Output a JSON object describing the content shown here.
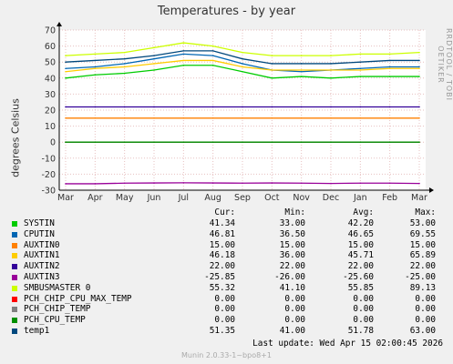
{
  "watermark": "RRDTOOL / TOBI OETIKER",
  "legend_headers": [
    "Cur:",
    "Min:",
    "Avg:",
    "Max:"
  ],
  "last_update": "Last update:  Wed Apr 15 02:00:45 2026",
  "footer": "Munin 2.0.33-1~bpo8+1",
  "chart_data": {
    "type": "line",
    "title": "Temperatures - by year",
    "xlabel": "",
    "ylabel": "degrees Celsius",
    "ylim": [
      -30,
      70
    ],
    "yticks": [
      -30,
      -20,
      -10,
      0,
      10,
      20,
      30,
      40,
      50,
      60,
      70
    ],
    "categories": [
      "Mar",
      "Apr",
      "May",
      "Jun",
      "Jul",
      "Aug",
      "Sep",
      "Oct",
      "Nov",
      "Dec",
      "Jan",
      "Feb",
      "Mar"
    ],
    "grid": true,
    "series": [
      {
        "name": "SYSTIN",
        "color": "#00cc00",
        "cur": "41.34",
        "min": "33.00",
        "avg": "42.20",
        "max": "53.00",
        "values": [
          40,
          42,
          43,
          45,
          48,
          48,
          44,
          40,
          41,
          40,
          41,
          41,
          41
        ]
      },
      {
        "name": "CPUTIN",
        "color": "#0066b3",
        "cur": "46.81",
        "min": "36.50",
        "avg": "46.65",
        "max": "69.55",
        "values": [
          46,
          47,
          49,
          52,
          55,
          54,
          49,
          45,
          44,
          45,
          46,
          47,
          47
        ]
      },
      {
        "name": "AUXTIN0",
        "color": "#ff8000",
        "cur": "15.00",
        "min": "15.00",
        "avg": "15.00",
        "max": "15.00",
        "values": [
          15,
          15,
          15,
          15,
          15,
          15,
          15,
          15,
          15,
          15,
          15,
          15,
          15
        ]
      },
      {
        "name": "AUXTIN1",
        "color": "#ffcc00",
        "cur": "46.18",
        "min": "36.00",
        "avg": "45.71",
        "max": "65.89",
        "values": [
          44,
          46,
          47,
          49,
          51,
          51,
          47,
          45,
          45,
          45,
          45,
          46,
          46
        ]
      },
      {
        "name": "AUXTIN2",
        "color": "#330099",
        "cur": "22.00",
        "min": "22.00",
        "avg": "22.00",
        "max": "22.00",
        "values": [
          22,
          22,
          22,
          22,
          22,
          22,
          22,
          22,
          22,
          22,
          22,
          22,
          22
        ]
      },
      {
        "name": "AUXTIN3",
        "color": "#990099",
        "cur": "-25.85",
        "min": "-26.00",
        "avg": "-25.60",
        "max": "-25.00",
        "values": [
          -26,
          -26,
          -25.6,
          -25.5,
          -25.4,
          -25.5,
          -25.6,
          -25.5,
          -25.6,
          -25.8,
          -25.6,
          -25.6,
          -25.8
        ]
      },
      {
        "name": "SMBUSMASTER 0",
        "color": "#ccff00",
        "cur": "55.32",
        "min": "41.10",
        "avg": "55.85",
        "max": "89.13",
        "values": [
          54,
          55,
          56,
          59,
          62,
          60,
          56,
          54,
          54,
          54,
          55,
          55,
          56
        ]
      },
      {
        "name": "PCH_CHIP_CPU_MAX_TEMP",
        "color": "#ff0000",
        "cur": "0.00",
        "min": "0.00",
        "avg": "0.00",
        "max": "0.00",
        "values": [
          0,
          0,
          0,
          0,
          0,
          0,
          0,
          0,
          0,
          0,
          0,
          0,
          0
        ]
      },
      {
        "name": "PCH_CHIP_TEMP",
        "color": "#808080",
        "cur": "0.00",
        "min": "0.00",
        "avg": "0.00",
        "max": "0.00",
        "values": [
          0,
          0,
          0,
          0,
          0,
          0,
          0,
          0,
          0,
          0,
          0,
          0,
          0
        ]
      },
      {
        "name": "PCH_CPU_TEMP",
        "color": "#008f00",
        "cur": "0.00",
        "min": "0.00",
        "avg": "0.00",
        "max": "0.00",
        "values": [
          0,
          0,
          0,
          0,
          0,
          0,
          0,
          0,
          0,
          0,
          0,
          0,
          0
        ]
      },
      {
        "name": "temp1",
        "color": "#00487d",
        "cur": "51.35",
        "min": "41.00",
        "avg": "51.78",
        "max": "63.00",
        "values": [
          50,
          51,
          52,
          54,
          57,
          57,
          52,
          49,
          49,
          49,
          50,
          51,
          51
        ]
      }
    ]
  }
}
